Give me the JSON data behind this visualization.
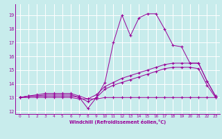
{
  "xlabel": "Windchill (Refroidissement éolien,°C)",
  "background_color": "#c8ecec",
  "line_color": "#990099",
  "grid_color": "#ffffff",
  "xlim": [
    -0.5,
    23.5
  ],
  "ylim": [
    11.8,
    19.8
  ],
  "yticks": [
    12,
    13,
    14,
    15,
    16,
    17,
    18,
    19
  ],
  "xticks": [
    0,
    1,
    2,
    3,
    4,
    5,
    6,
    7,
    8,
    9,
    10,
    11,
    12,
    13,
    14,
    15,
    16,
    17,
    18,
    19,
    20,
    21,
    22,
    23
  ],
  "series1_x": [
    0,
    1,
    2,
    3,
    4,
    5,
    6,
    7,
    8,
    9,
    10,
    11,
    12,
    13,
    14,
    15,
    16,
    17,
    18,
    19,
    20,
    21,
    22,
    23
  ],
  "series1_y": [
    13.0,
    13.1,
    13.1,
    13.1,
    13.1,
    13.1,
    13.1,
    13.0,
    12.2,
    13.0,
    14.1,
    17.0,
    19.0,
    17.5,
    18.8,
    19.1,
    19.1,
    18.0,
    16.8,
    16.7,
    15.5,
    15.5,
    14.2,
    13.1
  ],
  "series2_x": [
    0,
    1,
    2,
    3,
    4,
    5,
    6,
    7,
    8,
    9,
    10,
    11,
    12,
    13,
    14,
    15,
    16,
    17,
    18,
    19,
    20,
    21,
    22,
    23
  ],
  "series2_y": [
    13.0,
    13.1,
    13.2,
    13.3,
    13.3,
    13.3,
    13.3,
    13.1,
    12.9,
    13.2,
    13.8,
    14.1,
    14.4,
    14.6,
    14.8,
    15.0,
    15.2,
    15.4,
    15.5,
    15.5,
    15.5,
    15.5,
    14.2,
    13.1
  ],
  "series3_x": [
    0,
    1,
    2,
    3,
    4,
    5,
    6,
    7,
    8,
    9,
    10,
    11,
    12,
    13,
    14,
    15,
    16,
    17,
    18,
    19,
    20,
    21,
    22,
    23
  ],
  "series3_y": [
    13.0,
    13.1,
    13.1,
    13.2,
    13.2,
    13.2,
    13.2,
    13.0,
    12.7,
    13.0,
    13.6,
    13.9,
    14.1,
    14.3,
    14.5,
    14.7,
    14.9,
    15.1,
    15.2,
    15.2,
    15.2,
    15.1,
    13.9,
    13.0
  ],
  "series4_x": [
    0,
    1,
    2,
    3,
    4,
    5,
    6,
    7,
    8,
    9,
    10,
    11,
    12,
    13,
    14,
    15,
    16,
    17,
    18,
    19,
    20,
    21,
    22,
    23
  ],
  "series4_y": [
    13.0,
    13.0,
    13.0,
    13.0,
    13.0,
    13.0,
    13.0,
    12.9,
    12.9,
    12.9,
    13.0,
    13.0,
    13.0,
    13.0,
    13.0,
    13.0,
    13.0,
    13.0,
    13.0,
    13.0,
    13.0,
    13.0,
    13.0,
    13.0
  ]
}
